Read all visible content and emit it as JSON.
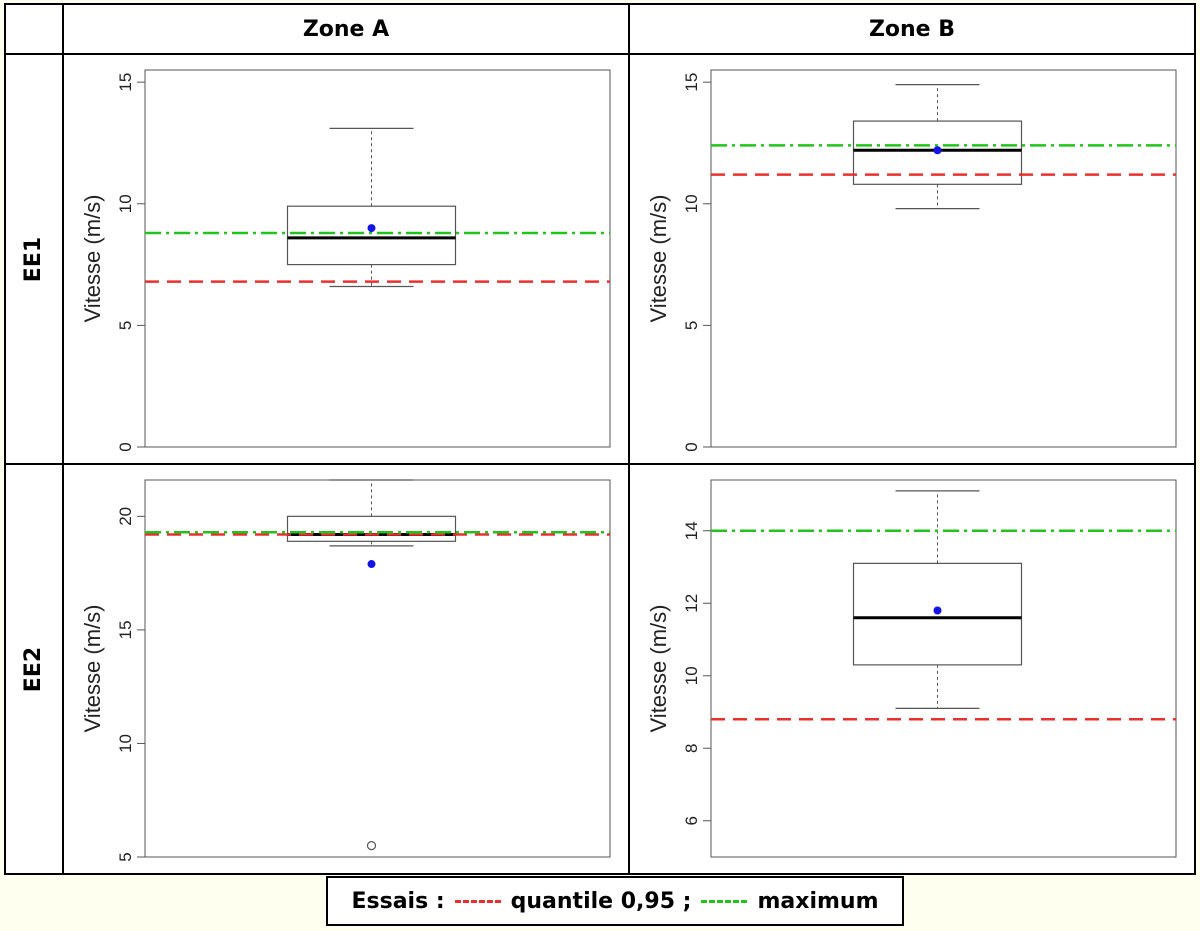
{
  "columns": [
    "Zone A",
    "Zone B"
  ],
  "rows": [
    "EE1",
    "EE2"
  ],
  "legend": {
    "prefix": "Essais :",
    "q95_label": "quantile 0,95 ;",
    "max_label": "maximum",
    "q95_color": "#e8302e",
    "max_color": "#22c41c"
  },
  "chart_data": [
    {
      "type": "box",
      "row": "EE1",
      "column": "Zone A",
      "ylabel": "Vitesse (m/s)",
      "ylim": [
        0,
        15.5
      ],
      "yticks": [
        0,
        5,
        10,
        15
      ],
      "box": {
        "whisker_low": 6.6,
        "q1": 7.5,
        "median": 8.6,
        "q3": 9.9,
        "whisker_high": 13.1,
        "mean": 9.0,
        "outliers": []
      },
      "q95": 6.8,
      "maximum": 8.8
    },
    {
      "type": "box",
      "row": "EE1",
      "column": "Zone B",
      "ylabel": "Vitesse (m/s)",
      "ylim": [
        0,
        15.5
      ],
      "yticks": [
        0,
        5,
        10,
        15
      ],
      "box": {
        "whisker_low": 9.8,
        "q1": 10.8,
        "median": 12.2,
        "q3": 13.4,
        "whisker_high": 14.9,
        "mean": 12.2,
        "outliers": []
      },
      "q95": 11.2,
      "maximum": 12.4
    },
    {
      "type": "box",
      "row": "EE2",
      "column": "Zone A",
      "ylabel": "Vitesse (m/s)",
      "ylim": [
        5,
        21.6
      ],
      "yticks": [
        5,
        10,
        15,
        20
      ],
      "box": {
        "whisker_low": 18.7,
        "q1": 18.9,
        "median": 19.2,
        "q3": 20.0,
        "whisker_high": 21.6,
        "mean": 17.9,
        "outliers": [
          5.5
        ]
      },
      "q95": 19.2,
      "maximum": 19.3
    },
    {
      "type": "box",
      "row": "EE2",
      "column": "Zone B",
      "ylabel": "Vitesse (m/s)",
      "ylim": [
        5,
        15.4
      ],
      "yticks": [
        6,
        8,
        10,
        12,
        14
      ],
      "box": {
        "whisker_low": 9.1,
        "q1": 10.3,
        "median": 11.6,
        "q3": 13.1,
        "whisker_high": 15.1,
        "mean": 11.8,
        "outliers": []
      },
      "q95": 8.8,
      "maximum": 14.0
    }
  ]
}
